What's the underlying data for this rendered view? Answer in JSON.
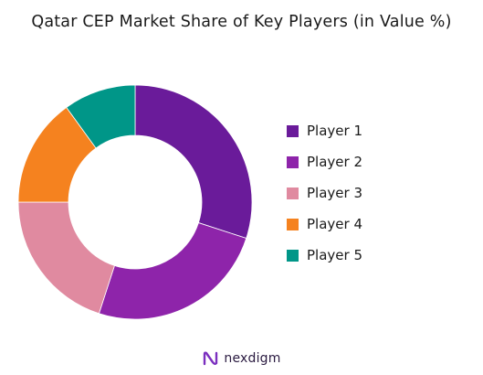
{
  "title": "Qatar CEP Market Share of Key Players (in Value %)",
  "chart_data": {
    "type": "pie",
    "variant": "donut",
    "title": "Qatar CEP Market Share of Key Players (in Value %)",
    "categories": [
      "Player 1",
      "Player 2",
      "Player 3",
      "Player 4",
      "Player 5"
    ],
    "values": [
      30,
      25,
      20,
      15,
      10
    ],
    "colors": [
      "#6a1b9a",
      "#8e24aa",
      "#e08aa0",
      "#f5821f",
      "#009688"
    ],
    "legend_position": "right"
  },
  "legend": [
    {
      "label": "Player 1",
      "color": "#6a1b9a"
    },
    {
      "label": "Player 2",
      "color": "#8e24aa"
    },
    {
      "label": "Player 3",
      "color": "#e08aa0"
    },
    {
      "label": "Player 4",
      "color": "#f5821f"
    },
    {
      "label": "Player 5",
      "color": "#009688"
    }
  ],
  "brand": {
    "name": "nexdigm",
    "logo_icon": "nexdigm-logo-icon",
    "color": "#7b2fbf"
  }
}
